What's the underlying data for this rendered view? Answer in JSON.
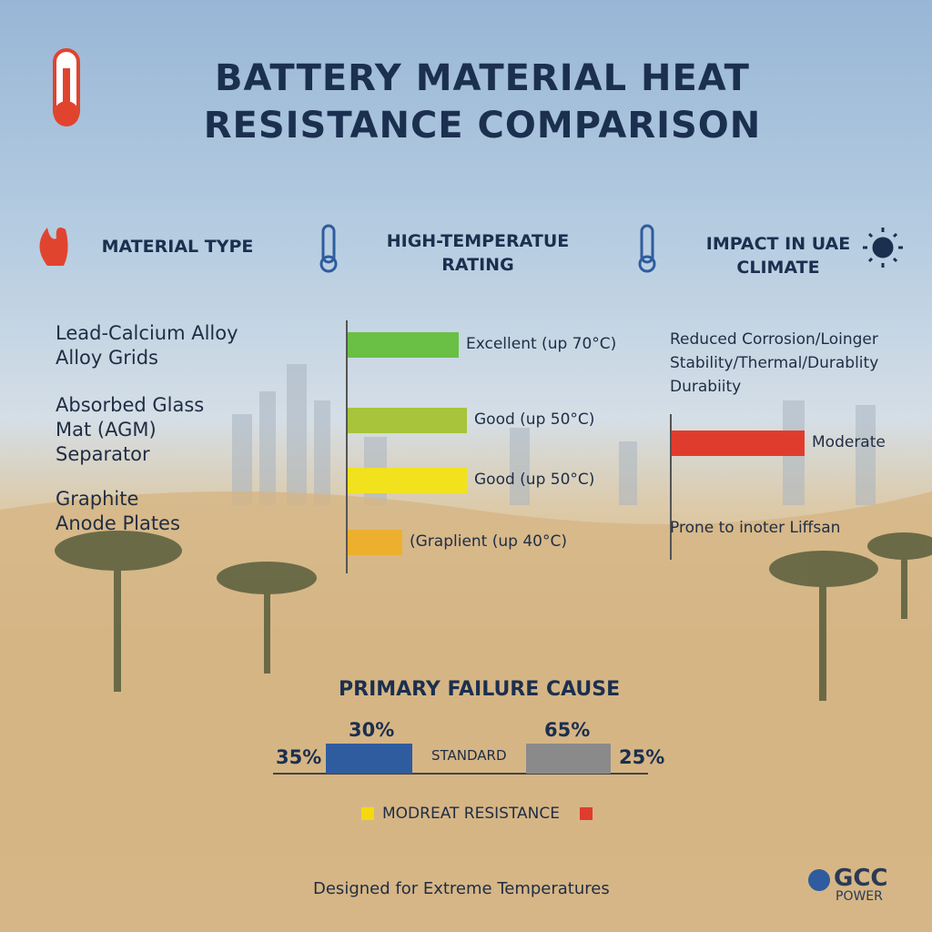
{
  "header": {
    "title": "BATTERY MATERIAL HEAT RESISTANCE COMPARISON"
  },
  "columns": [
    "MATERIAL TYPE",
    "HIGH-TEMPERATUE RATING",
    "IMPACT IN UAE CLIMATE"
  ],
  "materials": [
    [
      "Lead-Calcium Alloy",
      "Alloy Grids"
    ],
    [
      "Absorbed Glass",
      "Mat (AGM)",
      "Separator"
    ],
    [
      "Graphite",
      "Anode Plates"
    ]
  ],
  "ratings": [
    {
      "label": "Excellent (up 70°C)",
      "color": "#6abf45"
    },
    {
      "label": "Good (up 50°C)",
      "color": "#a8c43a"
    },
    {
      "label": "Good (up 50°C)",
      "color": "#f2e21e"
    },
    {
      "label": "(Graplient (up 40°C)",
      "color": "#ecb02e"
    }
  ],
  "impact": {
    "text": "Reduced Corrosion/Loinger Stability/Thermal/Durablity Durabiity",
    "bar_label": "Moderate",
    "bar_color": "#e03c2e",
    "note": "Prone to inoter Liffsan"
  },
  "failure": {
    "title": "PRIMARY FAILURE CAUSE",
    "left": "35%",
    "bar1_top": "30%",
    "middle": "STANDARD",
    "bar2_top": "65%",
    "right": "25%",
    "bar1_color": "#2f5c9e",
    "bar2_color": "#8a8a8a"
  },
  "legend": {
    "label": "MODREAT RESISTANCE",
    "color1": "#f5d90f",
    "color2": "#e03c2e"
  },
  "footer": {
    "text": "Designed for Extreme Temperatures",
    "logo": "GCC",
    "logo_sub": "POWER"
  }
}
